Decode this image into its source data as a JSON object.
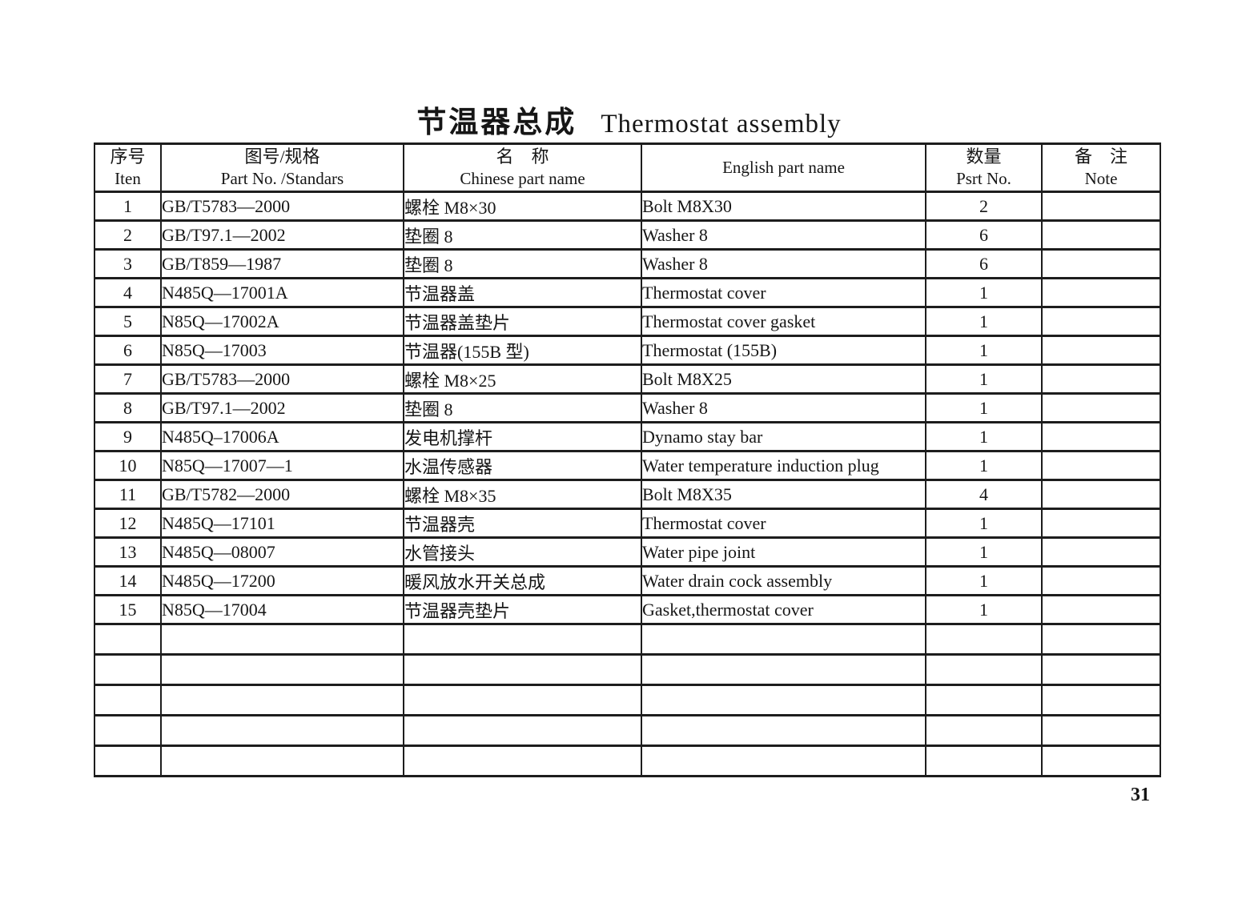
{
  "page": {
    "title_cn": "节温器总成",
    "title_en": "Thermostat assembly",
    "page_number": "31"
  },
  "table": {
    "headers": [
      {
        "line1": "序号",
        "line2": "Iten"
      },
      {
        "line1": "图号/规格",
        "line2": "Part No. /Standars"
      },
      {
        "line1": "名　称",
        "line2": "Chinese part name"
      },
      {
        "line1": "English part name",
        "line2": ""
      },
      {
        "line1": "数量",
        "line2": "Psrt No."
      },
      {
        "line1": "备　注",
        "line2": "Note"
      }
    ],
    "rows": [
      {
        "item": "1",
        "part_no": "GB/T5783—2000",
        "cn_name": "螺栓 M8×30",
        "en_name": "Bolt M8X30",
        "qty": "2",
        "note": ""
      },
      {
        "item": "2",
        "part_no": "GB/T97.1—2002",
        "cn_name": "垫圈 8",
        "en_name": "Washer 8",
        "qty": "6",
        "note": ""
      },
      {
        "item": "3",
        "part_no": "GB/T859—1987",
        "cn_name": "垫圈 8",
        "en_name": "Washer 8",
        "qty": "6",
        "note": ""
      },
      {
        "item": "4",
        "part_no": "N485Q—17001A",
        "cn_name": "节温器盖",
        "en_name": "Thermostat cover",
        "qty": "1",
        "note": ""
      },
      {
        "item": "5",
        "part_no": "N85Q—17002A",
        "cn_name": "节温器盖垫片",
        "en_name": "Thermostat cover gasket",
        "qty": "1",
        "note": ""
      },
      {
        "item": "6",
        "part_no": "N85Q—17003",
        "cn_name": "节温器(155B 型)",
        "en_name": "Thermostat (155B)",
        "qty": "1",
        "note": ""
      },
      {
        "item": "7",
        "part_no": "GB/T5783—2000",
        "cn_name": "螺栓 M8×25",
        "en_name": "Bolt M8X25",
        "qty": "1",
        "note": ""
      },
      {
        "item": "8",
        "part_no": "GB/T97.1—2002",
        "cn_name": "垫圈 8",
        "en_name": "Washer 8",
        "qty": "1",
        "note": ""
      },
      {
        "item": "9",
        "part_no": "N485Q–17006A",
        "cn_name": "发电机撑杆",
        "en_name": "Dynamo stay bar",
        "qty": "1",
        "note": ""
      },
      {
        "item": "10",
        "part_no": "N85Q—17007—1",
        "cn_name": "水温传感器",
        "en_name": "Water temperature induction plug",
        "qty": "1",
        "note": ""
      },
      {
        "item": "11",
        "part_no": "GB/T5782—2000",
        "cn_name": "螺栓 M8×35",
        "en_name": "Bolt M8X35",
        "qty": "4",
        "note": ""
      },
      {
        "item": "12",
        "part_no": "N485Q—17101",
        "cn_name": "节温器壳",
        "en_name": "Thermostat cover",
        "qty": "1",
        "note": ""
      },
      {
        "item": "13",
        "part_no": "N485Q—08007",
        "cn_name": "水管接头",
        "en_name": "Water pipe joint",
        "qty": "1",
        "note": ""
      },
      {
        "item": "14",
        "part_no": "N485Q—17200",
        "cn_name": "暖风放水开关总成",
        "en_name": "Water drain cock assembly",
        "qty": "1",
        "note": ""
      },
      {
        "item": "15",
        "part_no": "N85Q—17004",
        "cn_name": "节温器壳垫片",
        "en_name": "Gasket,thermostat cover",
        "qty": "1",
        "note": ""
      }
    ],
    "empty_row_count": 5
  }
}
